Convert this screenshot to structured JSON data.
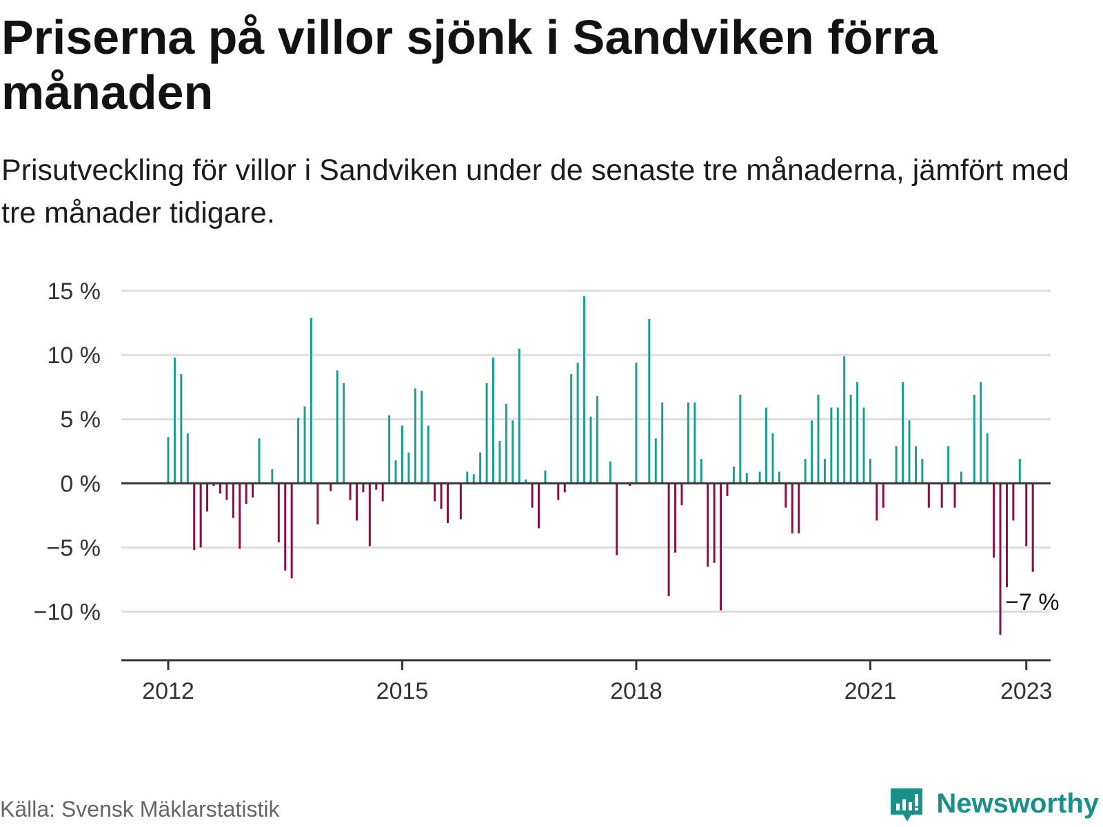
{
  "title": "Priserna på villor sjönk i Sandviken förra månaden",
  "subtitle": "Prisutveckling för villor i Sandviken under de senaste tre månaderna, jämfört med tre månader tidigare.",
  "source": "Källa: Svensk Mäklarstatistik",
  "brand": {
    "name": "Newsworthy",
    "icon": "newsworthy-logo-icon",
    "color": "#1b8f8a"
  },
  "colors": {
    "positive": "#1a9f97",
    "negative": "#8c0d48",
    "zero_line": "#333333",
    "grid": "#dddddd"
  },
  "chart_data": {
    "type": "bar",
    "x_unit": "month",
    "x_start": "2012-01",
    "ylim": [
      -13.5,
      15.5
    ],
    "yticks": [
      15,
      10,
      5,
      0,
      -5,
      -10
    ],
    "ytick_labels": [
      "15 %",
      "10 %",
      "5 %",
      "0 %",
      "−5 %",
      "−10 %"
    ],
    "xticks": [
      "2012",
      "2015",
      "2018",
      "2021",
      "2023"
    ],
    "grid": true,
    "end_label": "−7 %",
    "values": [
      3.6,
      9.8,
      8.5,
      3.9,
      -5.2,
      -5.0,
      -2.2,
      -0.2,
      -0.8,
      -1.3,
      -2.7,
      -5.1,
      -1.6,
      -1.1,
      3.5,
      0.0,
      1.1,
      -4.6,
      -6.8,
      -7.4,
      5.1,
      6.0,
      12.9,
      -3.2,
      0.0,
      -0.6,
      8.8,
      7.8,
      -1.3,
      -2.9,
      -0.7,
      -4.9,
      -0.5,
      -1.4,
      5.3,
      1.8,
      4.5,
      2.4,
      7.4,
      7.2,
      4.5,
      -1.4,
      -2.0,
      -3.1,
      0.0,
      -2.8,
      0.9,
      0.7,
      2.4,
      7.8,
      9.8,
      3.3,
      6.2,
      4.9,
      10.5,
      0.3,
      -1.9,
      -3.5,
      1.0,
      0.0,
      -1.3,
      -0.7,
      8.5,
      9.4,
      14.6,
      5.2,
      6.8,
      0.0,
      1.7,
      -5.6,
      0.0,
      -0.2,
      9.4,
      0.0,
      12.8,
      3.5,
      6.3,
      -8.8,
      -5.4,
      -1.7,
      6.3,
      6.3,
      1.9,
      -6.5,
      -6.2,
      -9.9,
      -1.0,
      1.3,
      6.9,
      0.8,
      0.0,
      0.9,
      5.9,
      3.9,
      0.9,
      -1.9,
      -3.9,
      -3.9,
      1.9,
      4.9,
      6.9,
      1.9,
      5.9,
      5.9,
      9.9,
      6.9,
      7.9,
      5.9,
      1.9,
      -2.9,
      -1.9,
      0.0,
      2.9,
      7.9,
      4.9,
      2.9,
      1.9,
      -1.9,
      0.0,
      -1.9,
      2.9,
      -1.9,
      0.9,
      0.0,
      6.9,
      7.9,
      3.9,
      -5.8,
      -11.8,
      -8.1,
      -2.9,
      1.9,
      -4.9,
      -6.9
    ]
  }
}
